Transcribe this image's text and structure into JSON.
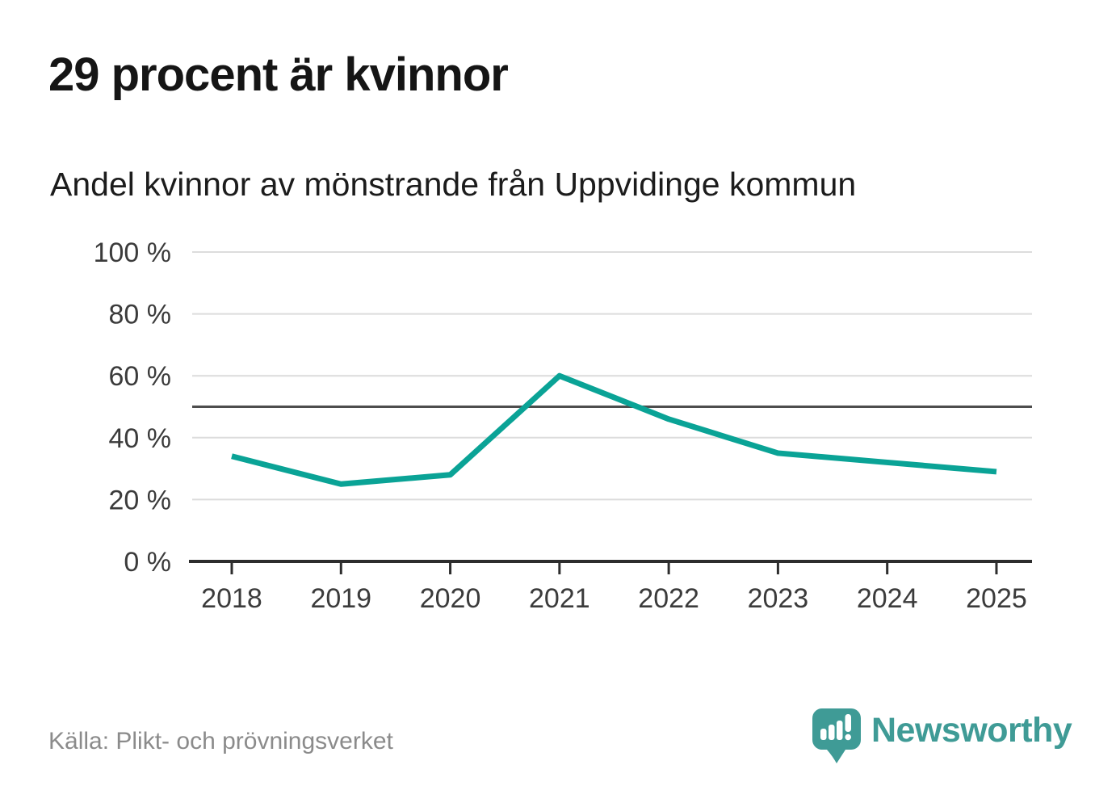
{
  "header": {
    "title": "29 procent är kvinnor",
    "subtitle": "Andel kvinnor av mönstrande från Uppvidinge kommun"
  },
  "chart_data": {
    "type": "line",
    "title": "Andel kvinnor av mönstrande från Uppvidinge kommun",
    "categories": [
      "2018",
      "2019",
      "2020",
      "2021",
      "2022",
      "2023",
      "2024",
      "2025"
    ],
    "values": [
      34,
      25,
      28,
      60,
      46,
      35,
      32,
      29
    ],
    "series_name": "Andel kvinnor av mönstrande",
    "unit": "%",
    "ylim": [
      0,
      100
    ],
    "y_ticks": [
      0,
      20,
      40,
      60,
      80,
      100
    ],
    "y_tick_labels": [
      "0 %",
      "20 %",
      "40 %",
      "60 %",
      "80 %",
      "100 %"
    ],
    "reference_line": 50,
    "grid": true,
    "legend": "none",
    "colors": {
      "line": "#0aa396",
      "gridline": "#dcdcdc",
      "reference_line": "#4d4d4d",
      "axis": "#2d2d2d",
      "tick_label": "#3b3b3b"
    }
  },
  "footer": {
    "source": "Källa: Plikt- och prövningsverket",
    "brand": "Newsworthy",
    "brand_color": "#3f9b96"
  }
}
